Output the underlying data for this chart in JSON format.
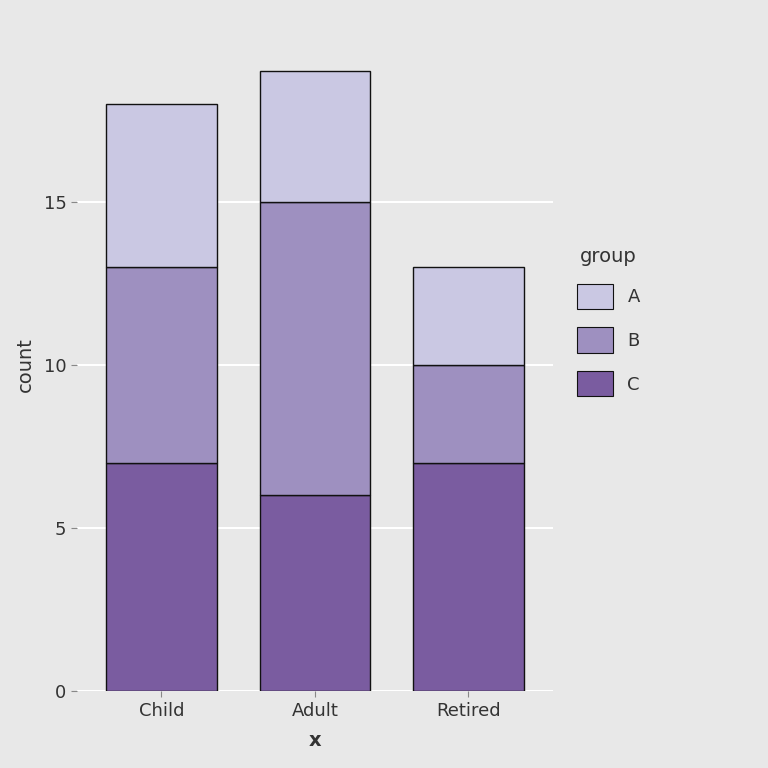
{
  "categories": [
    "Child",
    "Adult",
    "Retired"
  ],
  "segments": {
    "C": [
      7,
      6,
      7
    ],
    "B": [
      6,
      9,
      3
    ],
    "A": [
      5,
      4,
      3
    ]
  },
  "colors": {
    "C": "#7a5ca0",
    "B": "#9e90c0",
    "A": "#cac8e3"
  },
  "ylabel": "count",
  "xlabel": "x",
  "ylim": [
    0,
    20
  ],
  "yticks": [
    0,
    5,
    10,
    15
  ],
  "legend_title": "group",
  "background_color": "#e8e8e8",
  "grid_color": "#ffffff",
  "bar_width": 0.72,
  "bar_edge_color": "#111111",
  "bar_edge_width": 1.0
}
